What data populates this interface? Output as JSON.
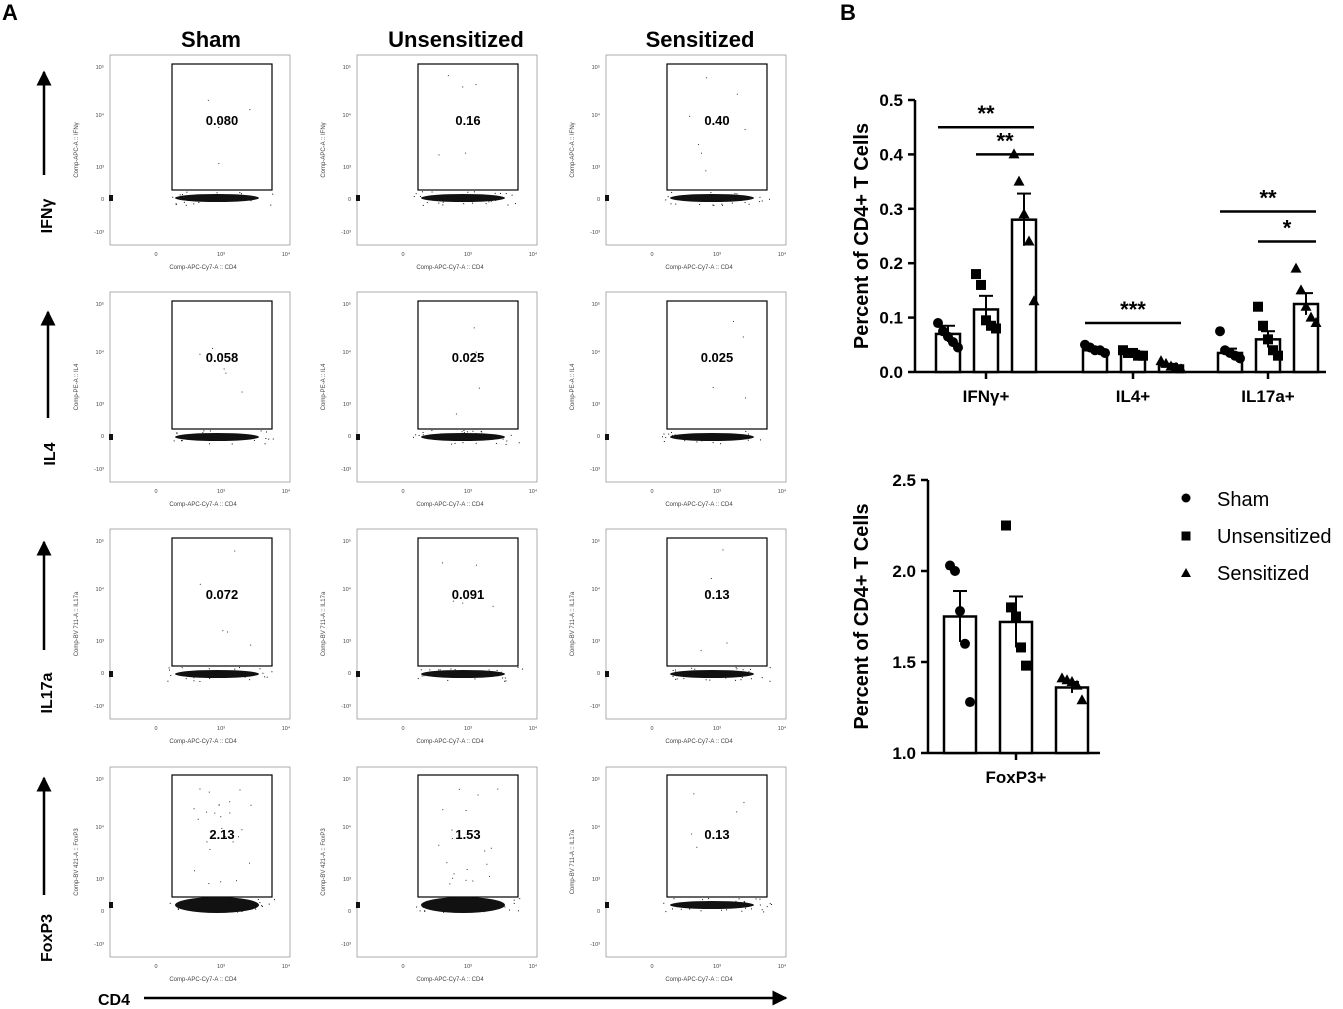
{
  "panel_a": {
    "label": "A",
    "columns": [
      "Sham",
      "Unsensitized",
      "Sensitized"
    ],
    "rows": [
      "IFNγ",
      "IL4",
      "IL17a",
      "FoxP3"
    ],
    "y_axis_labels": [
      [
        "Comp-APC-A :: IFNγ",
        "Comp-APC-A :: IFNγ",
        "Comp-APC-A :: IFNγ"
      ],
      [
        "Comp-PE-A :: IL4",
        "Comp-PE-A :: IL4",
        "Comp-PE-A :: IL4"
      ],
      [
        "Comp-BV 711-A :: IL17a",
        "Comp-BV 711-A :: IL17a",
        "Comp-BV 711-A :: IL17a"
      ],
      [
        "Comp-BV 421-A :: FoxP3",
        "Comp-BV 421-A :: FoxP3",
        "Comp-BV 711-A :: IL17a"
      ]
    ],
    "x_axis_label": "Comp-APC-Cy7-A :: CD4",
    "gate_values": [
      [
        "0.080",
        "0.16",
        "0.40"
      ],
      [
        "0.058",
        "0.025",
        "0.025"
      ],
      [
        "0.072",
        "0.091",
        "0.13"
      ],
      [
        "2.13",
        "1.53",
        "0.13"
      ]
    ],
    "y_ticks": [
      "10⁵",
      "10⁴",
      "10³",
      "0",
      "-10³"
    ],
    "x_ticks": [
      "0",
      "10³",
      "10⁴"
    ],
    "bottom_axis_label": "CD4"
  },
  "panel_b": {
    "label": "B"
  },
  "legend": {
    "entries": [
      {
        "name": "Sham",
        "marker": "circle"
      },
      {
        "name": "Unsensitized",
        "marker": "square"
      },
      {
        "name": "Sensitized",
        "marker": "triangle"
      }
    ]
  },
  "chart_data": [
    {
      "type": "bar",
      "title": "",
      "xlabel": "",
      "ylabel": "Percent of CD4+ T Cells",
      "ylim": [
        0,
        0.5
      ],
      "yticks": [
        0.0,
        0.1,
        0.2,
        0.3,
        0.4,
        0.5
      ],
      "ytick_labels": [
        "0.0",
        "0.1",
        "0.2",
        "0.3",
        "0.4",
        "0.5"
      ],
      "categories": [
        "IFNγ+",
        "IL4+",
        "IL17a+"
      ],
      "series": [
        {
          "name": "Sham",
          "values": [
            0.07,
            0.04,
            0.035
          ],
          "sem": [
            0.015,
            0.005,
            0.008
          ],
          "points": [
            [
              0.09,
              0.075,
              0.065,
              0.055,
              0.045
            ],
            [
              0.05,
              0.045,
              0.04,
              0.04,
              0.035
            ],
            [
              0.075,
              0.04,
              0.035,
              0.03,
              0.025
            ]
          ]
        },
        {
          "name": "Unsensitized",
          "values": [
            0.115,
            0.035,
            0.06
          ],
          "sem": [
            0.025,
            0.004,
            0.015
          ],
          "points": [
            [
              0.18,
              0.16,
              0.095,
              0.085,
              0.08
            ],
            [
              0.04,
              0.035,
              0.035,
              0.03,
              0.03
            ],
            [
              0.12,
              0.085,
              0.06,
              0.04,
              0.03
            ]
          ]
        },
        {
          "name": "Sensitized",
          "values": [
            0.28,
            0.012,
            0.125
          ],
          "sem": [
            0.048,
            0.003,
            0.02
          ],
          "points": [
            [
              0.4,
              0.35,
              0.29,
              0.24,
              0.13
            ],
            [
              0.02,
              0.015,
              0.01,
              0.008,
              0.005
            ],
            [
              0.19,
              0.15,
              0.12,
              0.1,
              0.09
            ]
          ]
        }
      ],
      "annotations": [
        {
          "text": "**",
          "from": "Sham",
          "to": "Sensitized",
          "category": "IFNγ+",
          "level": 0.45
        },
        {
          "text": "**",
          "from": "Unsensitized",
          "to": "Sensitized",
          "category": "IFNγ+",
          "level": 0.4
        },
        {
          "text": "***",
          "from": "Sham",
          "to": "Sensitized",
          "category": "IL4+",
          "level": 0.09
        },
        {
          "text": "**",
          "from": "Sham",
          "to": "Sensitized",
          "category": "IL17a+",
          "level": 0.295
        },
        {
          "text": "*",
          "from": "Unsensitized",
          "to": "Sensitized",
          "category": "IL17a+",
          "level": 0.24
        }
      ]
    },
    {
      "type": "bar",
      "title": "",
      "xlabel": "",
      "ylabel": "Percent of CD4+ T Cells",
      "ylim": [
        1.0,
        2.5
      ],
      "yticks": [
        1.0,
        1.5,
        2.0,
        2.5
      ],
      "ytick_labels": [
        "1.0",
        "1.5",
        "2.0",
        "2.5"
      ],
      "categories": [
        "FoxP3+"
      ],
      "series": [
        {
          "name": "Sham",
          "values": [
            1.75
          ],
          "sem": [
            0.14
          ],
          "points": [
            [
              2.03,
              2.0,
              1.78,
              1.6,
              1.28
            ]
          ]
        },
        {
          "name": "Unsensitized",
          "values": [
            1.72
          ],
          "sem": [
            0.14
          ],
          "points": [
            [
              2.25,
              1.8,
              1.75,
              1.58,
              1.48
            ]
          ]
        },
        {
          "name": "Sensitized",
          "values": [
            1.36
          ],
          "sem": [
            0.03
          ],
          "points": [
            [
              1.41,
              1.4,
              1.39,
              1.37,
              1.29
            ]
          ]
        }
      ],
      "annotations": []
    }
  ]
}
